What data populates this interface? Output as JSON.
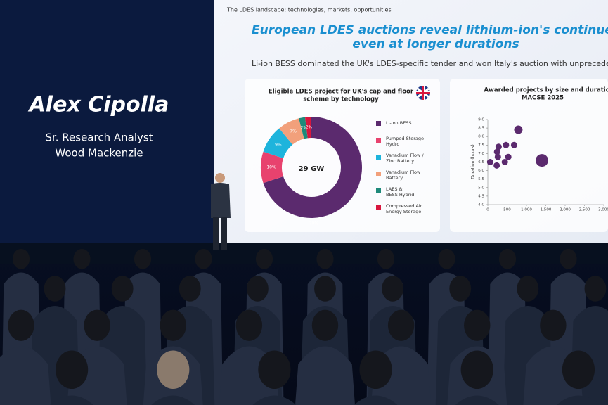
{
  "speaker": {
    "name": "Alex Cipolla",
    "role": "Sr. Research Analyst",
    "company": "Wood Mackenzie"
  },
  "slide": {
    "header": "The LDES landscape: technologies, markets, opportunities",
    "title_lines": [
      "European LDES auctions reveal lithium-ion's continued domin",
      "even at longer durations"
    ],
    "subtitle": "Li-ion BESS dominated the UK's LDES-specific tender and won Italy's auction with unprecedented",
    "donut": {
      "type": "pie",
      "title_lines": [
        "Eligible LDES project for UK's cap and floor",
        "scheme by technology"
      ],
      "center_label": "29 GW",
      "categories": [
        "Li-ion BESS",
        "Pumped Storage Hydro",
        "Vanadium Flow / Zinc Battery",
        "Vanadium Flow Battery",
        "LAES & BESS Hybrid",
        "Compressed Air Energy Storage"
      ],
      "values": [
        70,
        10,
        9,
        7,
        2,
        2
      ],
      "value_labels": [
        "70%",
        "10%",
        "9%",
        "7%",
        "2%",
        "2%"
      ],
      "colors": [
        "#5b2a6e",
        "#e8426e",
        "#1eb4dc",
        "#f2a07b",
        "#1e8a7a",
        "#d8163e"
      ]
    },
    "scatter": {
      "type": "scatter",
      "title_lines": [
        "Awarded projects by size and duratio",
        "MACSE 2025"
      ],
      "y_label": "Duration (hours)",
      "x": [
        60,
        230,
        240,
        260,
        280,
        440,
        470,
        530,
        680,
        790,
        1400
      ],
      "values": [
        6.5,
        6.3,
        7.1,
        6.8,
        7.4,
        6.5,
        7.5,
        6.8,
        7.5,
        8.4,
        6.6
      ],
      "color": "#5b2a6e",
      "xlim": [
        0,
        3000
      ],
      "ylim": [
        4,
        9
      ],
      "xticks": [
        0,
        500,
        {
          "value": 1000,
          "label": "1,000"
        },
        {
          "value": 1500,
          "label": "1,500"
        },
        {
          "value": 2000,
          "label": "2,000"
        },
        {
          "value": 2500,
          "label": "2,500"
        },
        {
          "value": 3000,
          "label": "3,000"
        }
      ],
      "yticks": [
        {
          "value": 4,
          "label": "4.0"
        },
        4.5,
        {
          "value": 5,
          "label": "5.0"
        },
        5.5,
        {
          "value": 6,
          "label": "6.0"
        },
        6.5,
        {
          "value": 7,
          "label": "7.0"
        },
        7.5,
        {
          "value": 8,
          "label": "8.0"
        },
        8.5,
        {
          "value": 9,
          "label": "9.0"
        }
      ]
    }
  }
}
